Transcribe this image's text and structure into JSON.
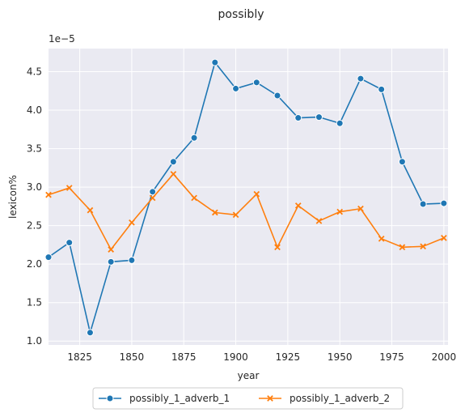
{
  "chart_data": {
    "type": "line",
    "title": "possibly",
    "xlabel": "year",
    "ylabel": "lexicon%",
    "y_offset_label": "1e−5",
    "xlim": [
      1810,
      2002
    ],
    "ylim": [
      0.95,
      4.8
    ],
    "x_ticks": [
      1825,
      1850,
      1875,
      1900,
      1925,
      1950,
      1975,
      2000
    ],
    "y_ticks": [
      1.0,
      1.5,
      2.0,
      2.5,
      3.0,
      3.5,
      4.0,
      4.5
    ],
    "y_tick_labels": [
      "1.0",
      "1.5",
      "2.0",
      "2.5",
      "3.0",
      "3.5",
      "4.0",
      "4.5"
    ],
    "grid": true,
    "legend_position": "bottom-center",
    "x": [
      1810,
      1820,
      1830,
      1840,
      1850,
      1860,
      1870,
      1880,
      1890,
      1900,
      1910,
      1920,
      1930,
      1940,
      1950,
      1960,
      1970,
      1980,
      1990,
      2000
    ],
    "series": [
      {
        "name": "possibly_1_adverb_1",
        "color": "#1f77b4",
        "marker": "circle",
        "values": [
          2.09,
          2.28,
          1.11,
          2.03,
          2.05,
          2.94,
          3.33,
          3.64,
          4.62,
          4.28,
          4.36,
          4.19,
          3.9,
          3.91,
          3.83,
          4.41,
          4.27,
          3.33,
          2.78,
          2.79
        ]
      },
      {
        "name": "possibly_1_adverb_2",
        "color": "#ff7f0e",
        "marker": "x",
        "values": [
          2.9,
          2.99,
          2.7,
          2.19,
          2.54,
          2.86,
          3.17,
          2.86,
          2.67,
          2.64,
          2.91,
          2.22,
          2.76,
          2.56,
          2.68,
          2.72,
          2.33,
          2.22,
          2.23,
          2.34
        ]
      }
    ]
  },
  "colors": {
    "plot_background": "#eaeaf2",
    "grid": "#ffffff",
    "text": "#262626"
  }
}
